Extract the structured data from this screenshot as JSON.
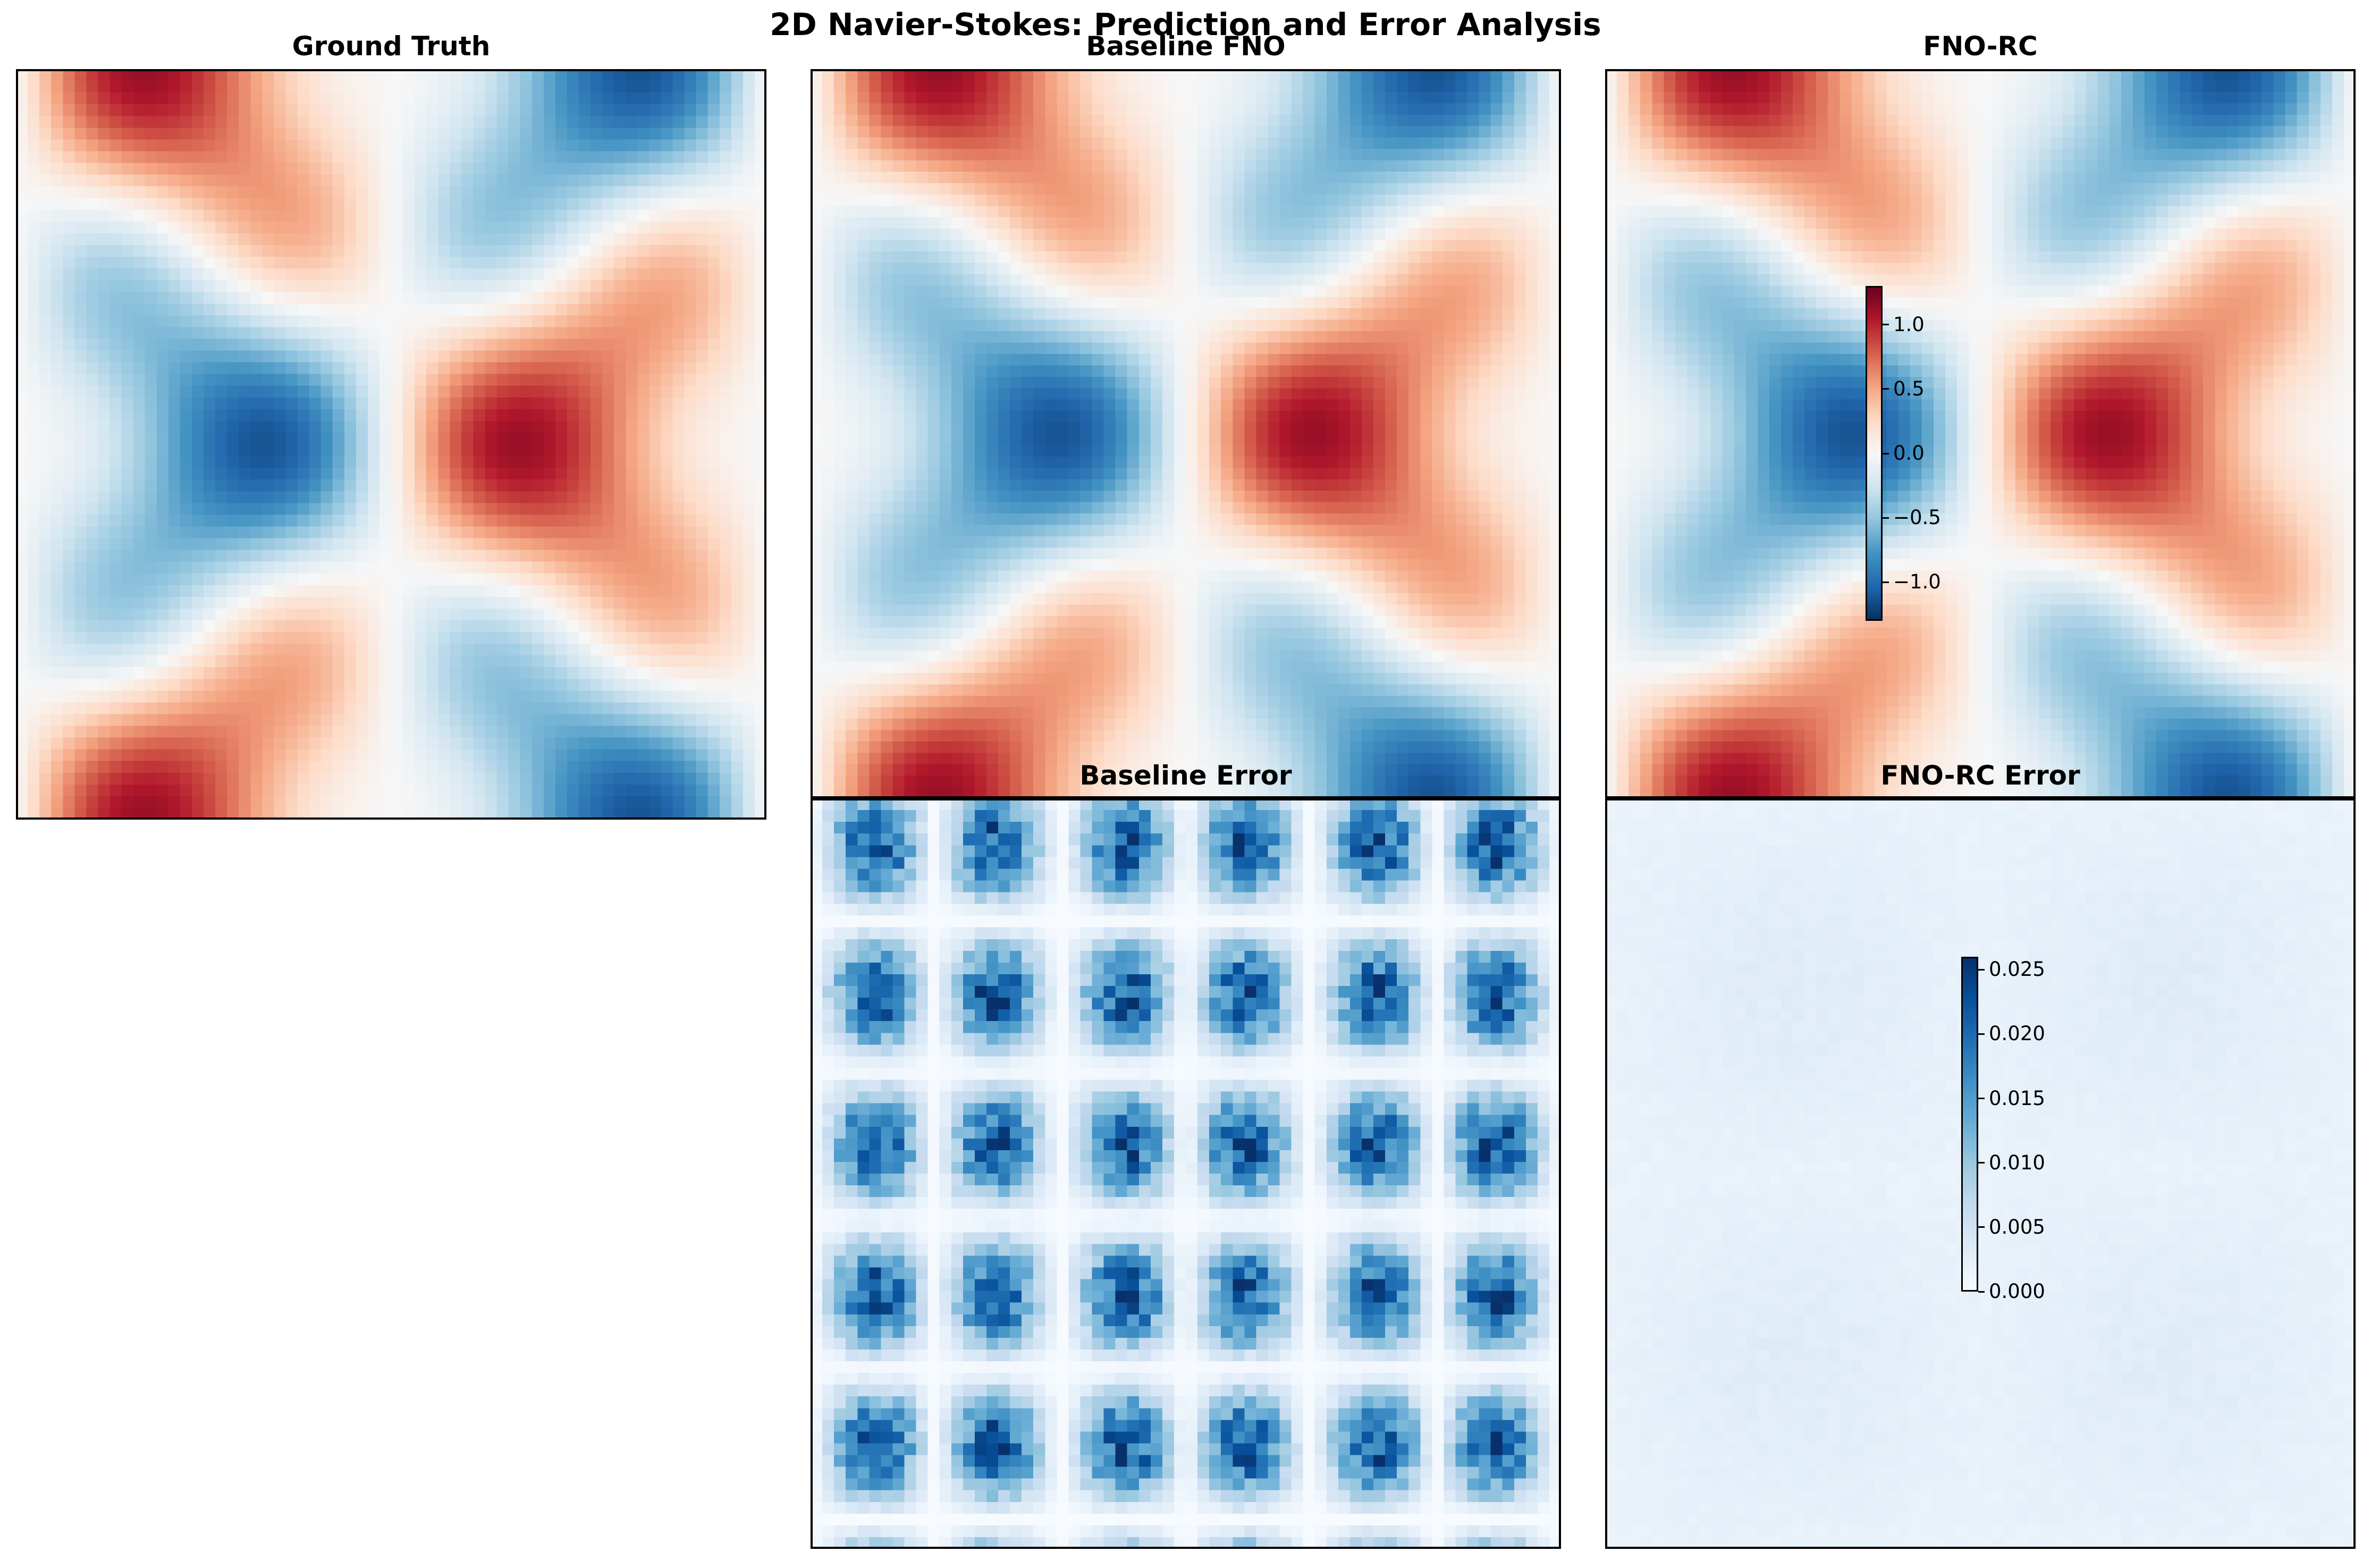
{
  "suptitle": "2D Navier-Stokes: Prediction and Error Analysis",
  "chart_data": [
    {
      "type": "heatmap",
      "title": "Ground Truth",
      "colormap": "RdBu_r",
      "grid": "64x64",
      "value_range": [
        -1.3,
        1.3
      ]
    },
    {
      "type": "heatmap",
      "title": "Baseline FNO",
      "colormap": "RdBu_r",
      "grid": "64x64",
      "value_range": [
        -1.3,
        1.3
      ]
    },
    {
      "type": "heatmap",
      "title": "FNO-RC",
      "colormap": "RdBu_r",
      "grid": "64x64",
      "value_range": [
        -1.3,
        1.3
      ],
      "colorbar": {
        "ticks": [
          1.0,
          0.5,
          0.0,
          -0.5,
          -1.0
        ],
        "tick_labels": [
          "1.0",
          "0.5",
          "0.0",
          "−0.5",
          "−1.0"
        ],
        "range": [
          -1.3,
          1.3
        ]
      }
    },
    {
      "type": "heatmap",
      "title": "Baseline Error",
      "colormap": "Blues",
      "grid": "64x64",
      "value_range": [
        0,
        0.026
      ]
    },
    {
      "type": "heatmap",
      "title": "FNO-RC Error",
      "colormap": "Blues",
      "grid": "64x64",
      "value_range": [
        0,
        0.026
      ],
      "colorbar": {
        "ticks": [
          0.025,
          0.02,
          0.015,
          0.01,
          0.005,
          0.0
        ],
        "tick_labels": [
          "0.025",
          "0.020",
          "0.015",
          "0.010",
          "0.005",
          "0.000"
        ],
        "range": [
          0,
          0.026
        ]
      }
    }
  ]
}
